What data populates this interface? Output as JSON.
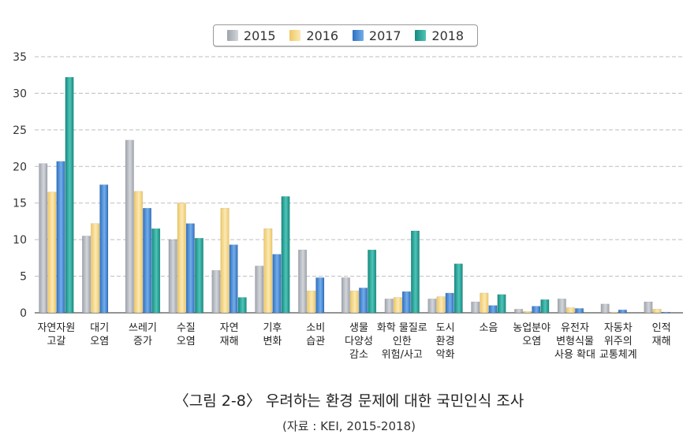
{
  "chart_data": {
    "type": "bar",
    "title": "〈그림 2-8〉 우려하는 환경 문제에 대한 국민인식 조사",
    "source": "(자료 : KEI, 2015-2018)",
    "ylim": [
      0,
      35
    ],
    "yticks": [
      0,
      5,
      10,
      15,
      20,
      25,
      30,
      35
    ],
    "grid": true,
    "legend_position": "top-center",
    "categories": [
      [
        "자연자원",
        "고갈"
      ],
      [
        "대기",
        "오염"
      ],
      [
        "쓰레기",
        "증가"
      ],
      [
        "수질",
        "오염"
      ],
      [
        "자연",
        "재해"
      ],
      [
        "기후",
        "변화"
      ],
      [
        "소비",
        "습관"
      ],
      [
        "생물",
        "다양성",
        "감소"
      ],
      [
        "화학 물질로",
        "인한",
        "위험/사고"
      ],
      [
        "도시",
        "환경",
        "악화"
      ],
      [
        "소음"
      ],
      [
        "농업분야",
        "오염"
      ],
      [
        "유전자",
        "변형식물",
        "사용 확대"
      ],
      [
        "자동차",
        "위주의",
        "교통체계"
      ],
      [
        "인적",
        "재해"
      ]
    ],
    "series": [
      {
        "name": "2015",
        "color": "#b4b8c0",
        "values": [
          20.4,
          10.5,
          23.6,
          10.0,
          5.8,
          6.4,
          8.6,
          4.8,
          1.9,
          1.9,
          1.5,
          0.5,
          1.9,
          1.2,
          1.5
        ]
      },
      {
        "name": "2016",
        "color": "#f5d98a",
        "values": [
          16.5,
          12.2,
          16.6,
          15.0,
          14.3,
          11.5,
          3.0,
          3.0,
          2.1,
          2.2,
          2.7,
          0.2,
          0.7,
          0.1,
          0.5
        ]
      },
      {
        "name": "2017",
        "color": "#4a8fd6",
        "values": [
          20.7,
          17.5,
          14.3,
          12.2,
          9.3,
          8.0,
          4.8,
          3.4,
          2.9,
          2.7,
          1.0,
          0.9,
          0.6,
          0.4,
          0.1
        ]
      },
      {
        "name": "2018",
        "color": "#2aa89c",
        "values": [
          32.2,
          null,
          11.5,
          10.2,
          2.1,
          15.9,
          null,
          8.6,
          11.2,
          6.7,
          2.5,
          1.8,
          null,
          null,
          null
        ]
      }
    ]
  }
}
